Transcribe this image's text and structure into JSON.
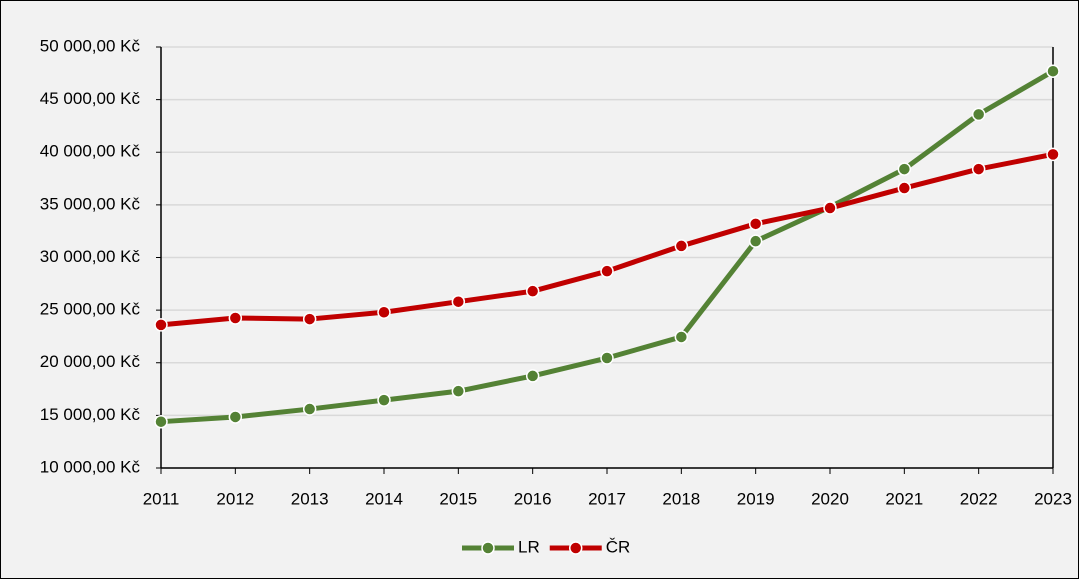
{
  "chart_data": {
    "type": "line",
    "categories": [
      "2011",
      "2012",
      "2013",
      "2014",
      "2015",
      "2016",
      "2017",
      "2018",
      "2019",
      "2020",
      "2021",
      "2022",
      "2023"
    ],
    "series": [
      {
        "name": "LR",
        "color": "#548235",
        "values": [
          14400,
          14850,
          15600,
          16450,
          17300,
          18750,
          20450,
          22450,
          31550,
          34800,
          38400,
          43600,
          47700
        ]
      },
      {
        "name": "ČR",
        "color": "#c00000",
        "values": [
          23600,
          24250,
          24150,
          24800,
          25800,
          26800,
          28700,
          31100,
          33200,
          34700,
          36600,
          38400,
          39800
        ]
      }
    ],
    "ylim": [
      10000,
      50000
    ],
    "yticks": [
      {
        "value": 10000,
        "label": "10 000,00 Kč"
      },
      {
        "value": 15000,
        "label": "15 000,00 Kč"
      },
      {
        "value": 20000,
        "label": "20 000,00 Kč"
      },
      {
        "value": 25000,
        "label": "25 000,00 Kč"
      },
      {
        "value": 30000,
        "label": "30 000,00 Kč"
      },
      {
        "value": 35000,
        "label": "35 000,00 Kč"
      },
      {
        "value": 40000,
        "label": "40 000,00 Kč"
      },
      {
        "value": 45000,
        "label": "45 000,00 Kč"
      },
      {
        "value": 50000,
        "label": "50 000,00 Kč"
      }
    ],
    "grid": true,
    "legend": "bottom"
  }
}
